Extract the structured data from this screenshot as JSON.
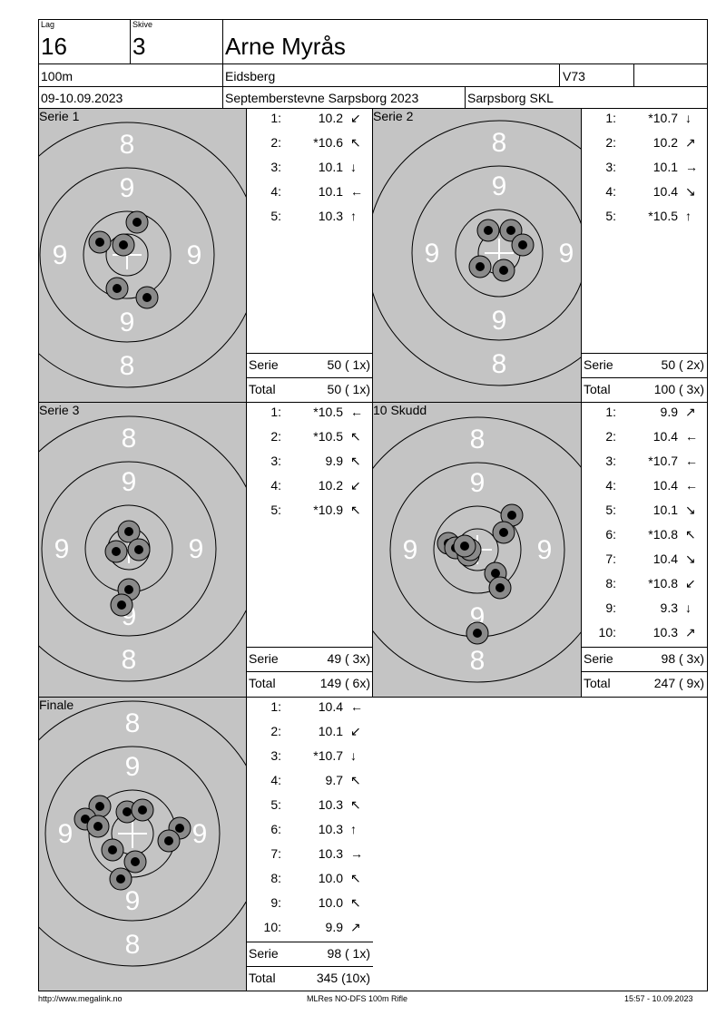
{
  "header": {
    "lag_label": "Lag",
    "lag_value": "16",
    "skive_label": "Skive",
    "skive_value": "3",
    "shooter_name": "Arne Myrås",
    "distance": "100m",
    "club": "Eidsberg",
    "class": "V73",
    "dates": "09-10.09.2023",
    "event": "Septemberstevne Sarpsborg 2023",
    "organizer": "Sarpsborg SKL"
  },
  "ring_labels": {
    "eight": "8",
    "nine": "9"
  },
  "panels": [
    {
      "title": "Serie 1",
      "shots": [
        {
          "num": "1:",
          "value": "10.2",
          "dir": "↙"
        },
        {
          "num": "2:",
          "value": "*10.6",
          "dir": "↖"
        },
        {
          "num": "3:",
          "value": "10.1",
          "dir": "↓"
        },
        {
          "num": "4:",
          "value": "10.1",
          "dir": "←"
        },
        {
          "num": "5:",
          "value": "10.3",
          "dir": "↑"
        }
      ],
      "serie_label": "Serie",
      "serie_value": "50 ( 1x)",
      "total_label": "Total",
      "total_value": "50 ( 1x)"
    },
    {
      "title": "Serie 2",
      "shots": [
        {
          "num": "1:",
          "value": "*10.7",
          "dir": "↓"
        },
        {
          "num": "2:",
          "value": "10.2",
          "dir": "↗"
        },
        {
          "num": "3:",
          "value": "10.1",
          "dir": "→"
        },
        {
          "num": "4:",
          "value": "10.4",
          "dir": "↘"
        },
        {
          "num": "5:",
          "value": "*10.5",
          "dir": "↑"
        }
      ],
      "serie_label": "Serie",
      "serie_value": "50 ( 2x)",
      "total_label": "Total",
      "total_value": "100 ( 3x)"
    },
    {
      "title": "Serie 3",
      "shots": [
        {
          "num": "1:",
          "value": "*10.5",
          "dir": "←"
        },
        {
          "num": "2:",
          "value": "*10.5",
          "dir": "↖"
        },
        {
          "num": "3:",
          "value": "9.9",
          "dir": "↖"
        },
        {
          "num": "4:",
          "value": "10.2",
          "dir": "↙"
        },
        {
          "num": "5:",
          "value": "*10.9",
          "dir": "↖"
        }
      ],
      "serie_label": "Serie",
      "serie_value": "49 ( 3x)",
      "total_label": "Total",
      "total_value": "149 ( 6x)"
    },
    {
      "title": "10 Skudd",
      "shots": [
        {
          "num": "1:",
          "value": "9.9",
          "dir": "↗"
        },
        {
          "num": "2:",
          "value": "10.4",
          "dir": "←"
        },
        {
          "num": "3:",
          "value": "*10.7",
          "dir": "←"
        },
        {
          "num": "4:",
          "value": "10.4",
          "dir": "←"
        },
        {
          "num": "5:",
          "value": "10.1",
          "dir": "↘"
        },
        {
          "num": "6:",
          "value": "*10.8",
          "dir": "↖"
        },
        {
          "num": "7:",
          "value": "10.4",
          "dir": "↘"
        },
        {
          "num": "8:",
          "value": "*10.8",
          "dir": "↙"
        },
        {
          "num": "9:",
          "value": "9.3",
          "dir": "↓"
        },
        {
          "num": "10:",
          "value": "10.3",
          "dir": "↗"
        }
      ],
      "serie_label": "Serie",
      "serie_value": "98 ( 3x)",
      "total_label": "Total",
      "total_value": "247 ( 9x)"
    },
    {
      "title": "Finale",
      "shots": [
        {
          "num": "1:",
          "value": "10.4",
          "dir": "←"
        },
        {
          "num": "2:",
          "value": "10.1",
          "dir": "↙"
        },
        {
          "num": "3:",
          "value": "*10.7",
          "dir": "↓"
        },
        {
          "num": "4:",
          "value": "9.7",
          "dir": "↖"
        },
        {
          "num": "5:",
          "value": "10.3",
          "dir": "↖"
        },
        {
          "num": "6:",
          "value": "10.3",
          "dir": "↑"
        },
        {
          "num": "7:",
          "value": "10.3",
          "dir": "→"
        },
        {
          "num": "8:",
          "value": "10.0",
          "dir": "↖"
        },
        {
          "num": "9:",
          "value": "10.0",
          "dir": "↖"
        },
        {
          "num": "10:",
          "value": "9.9",
          "dir": "↗"
        }
      ],
      "serie_label": "Serie",
      "serie_value": "98 ( 1x)",
      "total_label": "Total",
      "total_value": "345 (10x)"
    }
  ],
  "footer": {
    "url": "http://www.megalink.no",
    "software": "MLRes NO-DFS 100m Rifle",
    "timestamp": "15:57 - 10.09.2023"
  },
  "colors": {
    "target_bg": "#c4c4c4",
    "hit_outer": "#8a8a8a",
    "hit_inner": "#000000"
  }
}
